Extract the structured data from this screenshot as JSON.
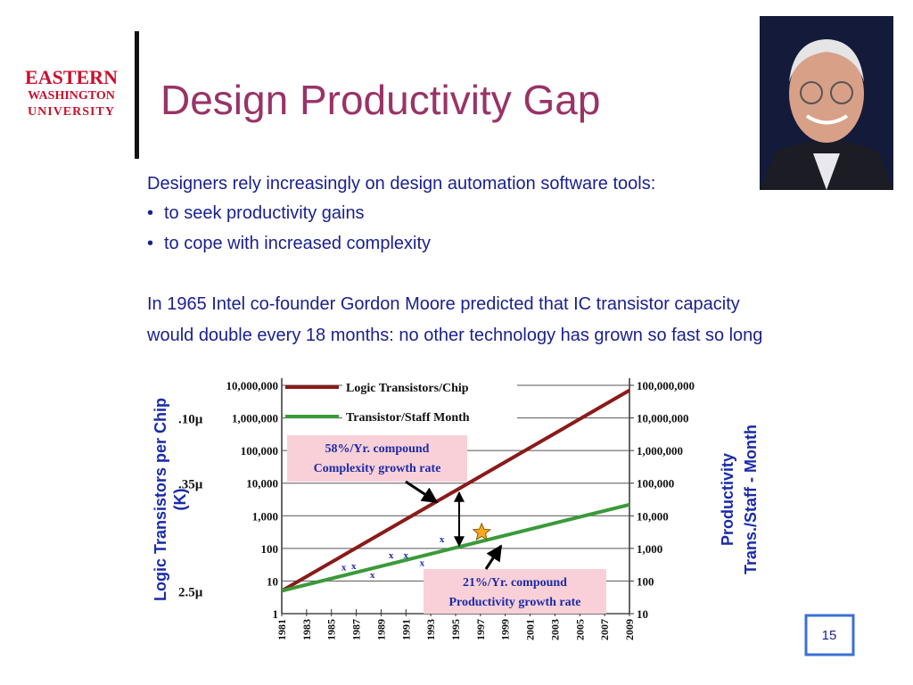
{
  "header": {
    "logo": [
      "EASTERN",
      "WASHINGTON",
      "UNIVERSITY"
    ],
    "title": "Design Productivity Gap"
  },
  "body": {
    "intro": "Designers rely increasingly on design automation software tools:",
    "bullets": [
      "to seek productivity gains",
      "to cope with increased complexity"
    ],
    "paragraph": [
      "In 1965 Intel co-founder Gordon Moore predicted that IC transistor capacity",
      "would double every 18 months: no other technology has grown so fast so long"
    ]
  },
  "chart_data": {
    "type": "line",
    "x": [
      1981,
      2009
    ],
    "xlim": [
      1981,
      2009
    ],
    "xticks": [
      1981,
      1983,
      1985,
      1987,
      1989,
      1991,
      1993,
      1995,
      1997,
      1999,
      2001,
      2003,
      2005,
      2007,
      2009
    ],
    "log_scale": true,
    "grid": true,
    "ylabel": [
      "Logic Transistors per Chip",
      "(K)"
    ],
    "y2label": [
      "Productivity",
      "Trans./Staff - Month"
    ],
    "ylim": [
      1,
      10000000
    ],
    "yticks": [
      {
        "value": 10000000,
        "label": "10,000,000"
      },
      {
        "value": 1000000,
        "label": "1,000,000"
      },
      {
        "value": 100000,
        "label": "100,000"
      },
      {
        "value": 10000,
        "label": "10,000"
      },
      {
        "value": 1000,
        "label": "1,000"
      },
      100,
      10,
      1
    ],
    "y2lim": [
      10,
      100000000
    ],
    "y2ticks": [
      {
        "value": 100000000,
        "label": "100,000,000"
      },
      {
        "value": 10000000,
        "label": "10,000,000"
      },
      {
        "value": 1000000,
        "label": "1,000,000"
      },
      {
        "value": 100000,
        "label": "100,000"
      },
      {
        "value": 10000,
        "label": "10,000"
      },
      {
        "value": 1000,
        "label": "1,000"
      },
      100,
      10
    ],
    "series": [
      {
        "name": "Logic Transistors/Chip",
        "color": "#8b1a1a",
        "values": [
          5,
          7000000
        ]
      },
      {
        "name": "Transistor/Staff Month",
        "color": "#3a9a3a",
        "values": [
          50,
          22000
        ],
        "axis": "y2"
      }
    ],
    "feature_sizes": [
      {
        "value": 1000000,
        "label": ".10µ"
      },
      {
        "value": 10000,
        "label": ".35µ"
      },
      {
        "value": 5,
        "label": "2.5µ"
      }
    ],
    "annotations": [
      [
        "58%/Yr. compound",
        "Complexity growth rate"
      ],
      [
        "21%/Yr. compound",
        "Productivity growth rate"
      ]
    ],
    "points": {
      "marker": "x",
      "x": [
        1986,
        1986.8,
        1988.3,
        1989.8,
        1991,
        1992.3,
        1993.9
      ],
      "values": [
        27,
        30,
        16,
        64,
        64,
        37,
        200
      ]
    },
    "star": {
      "x": 1997.1,
      "value": 310
    }
  },
  "page_number": 15
}
